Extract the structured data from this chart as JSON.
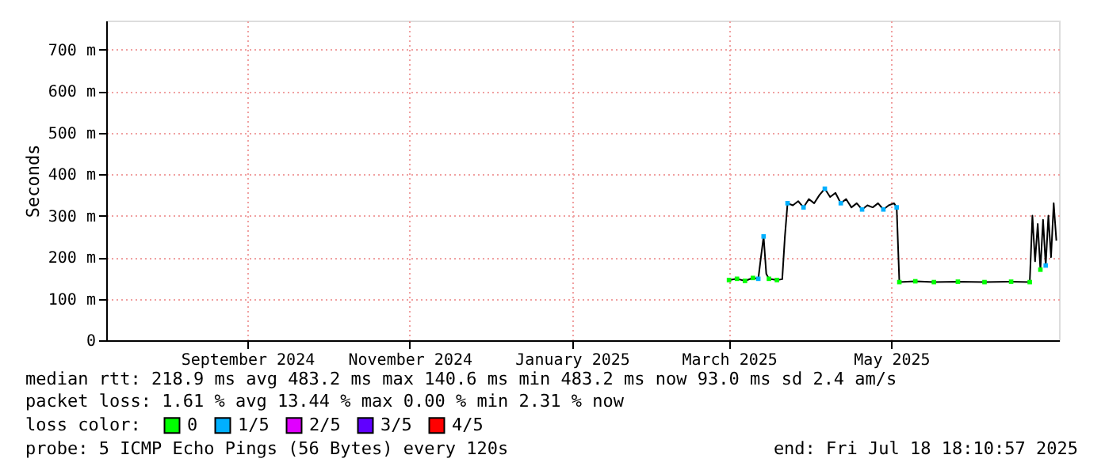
{
  "chart_data": {
    "type": "line",
    "ylabel": "Seconds",
    "legend_title": "loss color:",
    "legend": "bottom",
    "grid": true,
    "xlim": [
      "2024-07-25",
      "2025-07-18"
    ],
    "ylim": [
      0,
      770
    ],
    "yticks": [
      0,
      {
        "value": 100,
        "label": "100 m"
      },
      {
        "value": 200,
        "label": "200 m"
      },
      {
        "value": 300,
        "label": "300 m"
      },
      {
        "value": 400,
        "label": "400 m"
      },
      {
        "value": 500,
        "label": "500 m"
      },
      {
        "value": 600,
        "label": "600 m"
      },
      {
        "value": 700,
        "label": "700 m"
      }
    ],
    "xticks": [
      {
        "value": "2024-09-16",
        "label": "September 2024"
      },
      {
        "value": "2024-11-16",
        "label": "November 2024"
      },
      {
        "value": "2025-01-16",
        "label": "January 2025"
      },
      {
        "value": "2025-03-16",
        "label": "March 2025"
      },
      {
        "value": "2025-05-16",
        "label": "May 2025"
      }
    ],
    "series": [
      {
        "color": "#000000",
        "marker": "none",
        "x": [
          "2025-03-16",
          "2025-03-19",
          "2025-03-22",
          "2025-03-25",
          "2025-03-27",
          "2025-03-28",
          "2025-03-29",
          "2025-03-30",
          "2025-03-31",
          "2025-04-03",
          "2025-04-05",
          "2025-04-06",
          "2025-04-07",
          "2025-04-09",
          "2025-04-11",
          "2025-04-13",
          "2025-04-15",
          "2025-04-17",
          "2025-04-19",
          "2025-04-21",
          "2025-04-23",
          "2025-04-25",
          "2025-04-27",
          "2025-04-29",
          "2025-05-01",
          "2025-05-03",
          "2025-05-05",
          "2025-05-07",
          "2025-05-09",
          "2025-05-11",
          "2025-05-13",
          "2025-05-15",
          "2025-05-17",
          "2025-05-18",
          "2025-05-19",
          "2025-05-25",
          "2025-06-01",
          "2025-06-10",
          "2025-06-20",
          "2025-06-30",
          "2025-07-07",
          "2025-07-08",
          "2025-07-09",
          "2025-07-10",
          "2025-07-11",
          "2025-07-12",
          "2025-07-13",
          "2025-07-14",
          "2025-07-15",
          "2025-07-16",
          "2025-07-17"
        ],
        "values": [
          145,
          148,
          143,
          150,
          148,
          200,
          250,
          160,
          148,
          145,
          147,
          250,
          330,
          325,
          335,
          320,
          340,
          330,
          350,
          365,
          345,
          355,
          330,
          340,
          320,
          330,
          315,
          325,
          320,
          330,
          315,
          325,
          330,
          320,
          140,
          142,
          140,
          141,
          140,
          141,
          140,
          300,
          190,
          280,
          170,
          290,
          180,
          300,
          200,
          330,
          240
        ]
      },
      {
        "name": "0",
        "type": "scatter",
        "marker": "square",
        "color": "#00ff00",
        "x": [
          "2025-03-16",
          "2025-03-19",
          "2025-03-22",
          "2025-03-25",
          "2025-03-31",
          "2025-04-03",
          "2025-05-19",
          "2025-05-25",
          "2025-06-01",
          "2025-06-10",
          "2025-06-20",
          "2025-06-30",
          "2025-07-07",
          "2025-07-11"
        ],
        "values": [
          145,
          148,
          143,
          150,
          148,
          145,
          140,
          142,
          140,
          141,
          140,
          141,
          140,
          170
        ]
      },
      {
        "name": "1/5",
        "type": "scatter",
        "marker": "square",
        "color": "#00b0ff",
        "x": [
          "2025-03-27",
          "2025-03-29",
          "2025-04-07",
          "2025-04-13",
          "2025-04-21",
          "2025-04-27",
          "2025-05-05",
          "2025-05-13",
          "2025-05-18",
          "2025-07-13"
        ],
        "values": [
          148,
          250,
          330,
          320,
          365,
          330,
          315,
          315,
          320,
          180
        ]
      },
      {
        "name": "2/5",
        "color": "#e000ff"
      },
      {
        "name": "3/5",
        "color": "#6000ff"
      },
      {
        "name": "4/5",
        "color": "#ff0000"
      }
    ],
    "annotations": [
      "median rtt:  218.9 ms avg  483.2 ms max  140.6 ms min  483.2 ms now  93.0 ms sd  2.4   am/s",
      "packet loss: 1.61 % avg  13.44 % max  0.00 % min  2.31 % now",
      "probe:       5 ICMP Echo Pings (56 Bytes) every 120s",
      "end: Fri Jul 18 18:10:57 2025"
    ]
  }
}
